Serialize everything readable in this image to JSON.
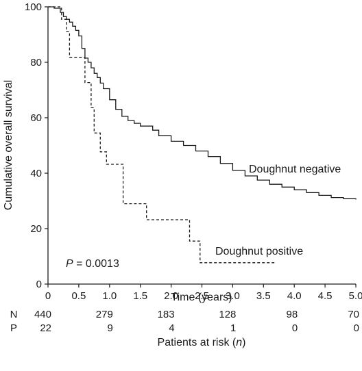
{
  "chart_data": {
    "type": "line",
    "title": "",
    "xlabel": "Time (years)",
    "ylabel": "Cumulative overall survival",
    "xlim": [
      0,
      5.0
    ],
    "ylim": [
      0,
      100
    ],
    "x_ticks": [
      "0",
      "0.5",
      "1.0",
      "1.5",
      "2.0",
      "2.5",
      "3.0",
      "3.5",
      "4.0",
      "4.5",
      "5.0"
    ],
    "y_ticks": [
      "0",
      "20",
      "40",
      "60",
      "80",
      "100"
    ],
    "grid": false,
    "step": true,
    "series": [
      {
        "name": "Doughnut negative",
        "style": "solid",
        "points": [
          [
            0,
            100
          ],
          [
            0.1,
            99.5
          ],
          [
            0.2,
            98
          ],
          [
            0.25,
            96.5
          ],
          [
            0.3,
            95.5
          ],
          [
            0.35,
            94.5
          ],
          [
            0.4,
            93
          ],
          [
            0.45,
            91.5
          ],
          [
            0.5,
            89.5
          ],
          [
            0.55,
            85
          ],
          [
            0.6,
            81.5
          ],
          [
            0.65,
            80
          ],
          [
            0.7,
            78
          ],
          [
            0.75,
            76
          ],
          [
            0.8,
            74.5
          ],
          [
            0.85,
            72.5
          ],
          [
            0.9,
            70.5
          ],
          [
            1.0,
            66.5
          ],
          [
            1.1,
            63
          ],
          [
            1.2,
            60.5
          ],
          [
            1.3,
            59
          ],
          [
            1.4,
            58
          ],
          [
            1.5,
            57
          ],
          [
            1.7,
            55.5
          ],
          [
            1.8,
            53.5
          ],
          [
            2.0,
            51.5
          ],
          [
            2.2,
            50
          ],
          [
            2.4,
            48
          ],
          [
            2.6,
            46
          ],
          [
            2.8,
            43.5
          ],
          [
            3.0,
            41
          ],
          [
            3.2,
            39
          ],
          [
            3.4,
            37.5
          ],
          [
            3.6,
            36
          ],
          [
            3.8,
            35
          ],
          [
            4.0,
            34
          ],
          [
            4.2,
            33
          ],
          [
            4.4,
            32
          ],
          [
            4.6,
            31.2
          ],
          [
            4.8,
            30.8
          ],
          [
            5.0,
            30.5
          ]
        ]
      },
      {
        "name": "Doughnut positive",
        "style": "dashed",
        "points": [
          [
            0,
            100
          ],
          [
            0.22,
            95.5
          ],
          [
            0.3,
            91
          ],
          [
            0.35,
            81.8
          ],
          [
            0.6,
            72.7
          ],
          [
            0.7,
            63.6
          ],
          [
            0.75,
            54.5
          ],
          [
            0.85,
            47.7
          ],
          [
            0.95,
            43.2
          ],
          [
            1.22,
            29
          ],
          [
            1.6,
            23.2
          ],
          [
            2.3,
            15.5
          ],
          [
            2.47,
            7.7
          ],
          [
            3.7,
            7.7
          ]
        ]
      }
    ],
    "annotation": {
      "prefix": "P",
      "text": " = 0.0013"
    },
    "at_risk": {
      "title": "Patients at risk (",
      "title_var": "n",
      "title_end": ")",
      "rows": [
        {
          "label": "N",
          "values": [
            "440",
            "279",
            "183",
            "128",
            "98",
            "70"
          ]
        },
        {
          "label": "P",
          "values": [
            "22",
            "9",
            "4",
            "1",
            "0",
            "0"
          ]
        }
      ]
    }
  }
}
